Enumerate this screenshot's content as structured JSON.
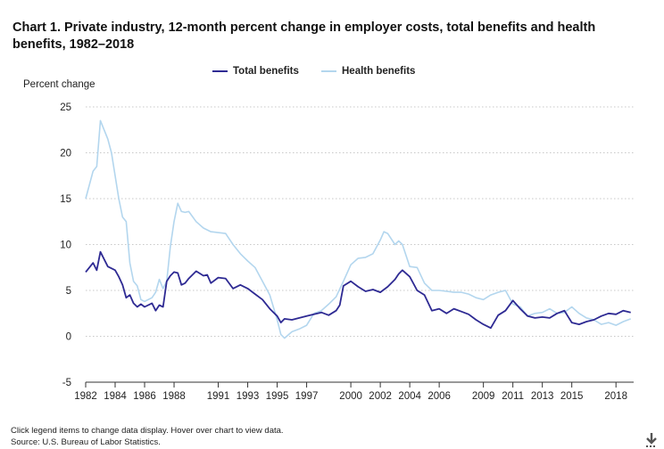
{
  "page": {
    "title": "Chart 1. Private industry, 12-month percent change in employer costs, total benefits and health benefits, 1982–2018",
    "note": "Click legend items to change data display. Hover over chart to view data.",
    "source": "Source: U.S. Bureau of Labor Statistics.",
    "download_icon": "download-arrow-icon"
  },
  "chart_data": {
    "type": "line",
    "title": "Chart 1. Private industry, 12-month percent change in employer costs, total benefits and health benefits, 1982–2018",
    "ylabel": "Percent change",
    "xlabel": "",
    "xlim": [
      1982,
      2019.2
    ],
    "ylim": [
      -5,
      25
    ],
    "yticks": [
      -5,
      0,
      5,
      10,
      15,
      20,
      25
    ],
    "xticks": [
      1982,
      1984,
      1986,
      1988,
      1991,
      1993,
      1995,
      1997,
      2000,
      2002,
      2004,
      2006,
      2009,
      2011,
      2013,
      2015,
      2018
    ],
    "grid": "horizontal dotted",
    "legend": "top-center",
    "series": [
      {
        "name": "Total benefits",
        "color": "#2e2a93",
        "x": [
          1982,
          1982.5,
          1982.75,
          1983,
          1983.5,
          1984,
          1984.25,
          1984.5,
          1984.75,
          1985,
          1985.25,
          1985.5,
          1985.75,
          1986,
          1986.5,
          1986.75,
          1987,
          1987.25,
          1987.5,
          1987.75,
          1988,
          1988.25,
          1988.5,
          1988.75,
          1989,
          1989.5,
          1990,
          1990.25,
          1990.5,
          1991,
          1991.5,
          1992,
          1992.5,
          1993,
          1993.5,
          1994,
          1994.5,
          1995,
          1995.25,
          1995.5,
          1996,
          1996.5,
          1997,
          1997.5,
          1998,
          1998.5,
          1999,
          1999.25,
          1999.5,
          2000,
          2000.5,
          2001,
          2001.5,
          2002,
          2002.5,
          2003,
          2003.25,
          2003.5,
          2004,
          2004.5,
          2005,
          2005.5,
          2006,
          2006.5,
          2007,
          2007.5,
          2008,
          2008.5,
          2009,
          2009.5,
          2010,
          2010.5,
          2011,
          2011.5,
          2012,
          2012.5,
          2013,
          2013.5,
          2014,
          2014.5,
          2015,
          2015.5,
          2016,
          2016.5,
          2017,
          2017.5,
          2018,
          2018.5,
          2019
        ],
        "values": [
          7.0,
          8.0,
          7.2,
          9.2,
          7.6,
          7.2,
          6.5,
          5.6,
          4.2,
          4.5,
          3.6,
          3.2,
          3.5,
          3.2,
          3.6,
          2.8,
          3.4,
          3.2,
          6.0,
          6.6,
          7.0,
          6.9,
          5.6,
          5.8,
          6.3,
          7.1,
          6.6,
          6.7,
          5.8,
          6.4,
          6.3,
          5.2,
          5.6,
          5.2,
          4.6,
          4.0,
          3.0,
          2.2,
          1.5,
          1.9,
          1.8,
          2.0,
          2.2,
          2.4,
          2.6,
          2.3,
          2.8,
          3.4,
          5.5,
          6.0,
          5.4,
          4.9,
          5.1,
          4.8,
          5.4,
          6.2,
          6.8,
          7.2,
          6.5,
          5.0,
          4.5,
          2.8,
          3.0,
          2.5,
          3.0,
          2.7,
          2.4,
          1.8,
          1.3,
          0.9,
          2.3,
          2.8,
          3.9,
          3.0,
          2.2,
          2.0,
          2.1,
          2.0,
          2.5,
          2.8,
          1.5,
          1.3,
          1.6,
          1.8,
          2.2,
          2.5,
          2.4,
          2.8,
          2.6
        ]
      },
      {
        "name": "Health benefits",
        "color": "#b3d6ee",
        "x": [
          1982,
          1982.5,
          1982.75,
          1983,
          1983.5,
          1983.75,
          1984,
          1984.25,
          1984.5,
          1984.75,
          1985,
          1985.25,
          1985.5,
          1985.75,
          1986,
          1986.5,
          1986.75,
          1987,
          1987.25,
          1987.5,
          1987.75,
          1988,
          1988.25,
          1988.5,
          1988.75,
          1989,
          1989.5,
          1990,
          1990.5,
          1991,
          1991.5,
          1992,
          1992.5,
          1993,
          1993.5,
          1994,
          1994.5,
          1995,
          1995.25,
          1995.5,
          1996,
          1996.5,
          1997,
          1997.5,
          1998,
          1998.5,
          1999,
          1999.5,
          2000,
          2000.5,
          2001,
          2001.5,
          2002,
          2002.25,
          2002.5,
          2003,
          2003.25,
          2003.5,
          2004,
          2004.5,
          2005,
          2005.5,
          2006,
          2006.5,
          2007,
          2007.5,
          2008,
          2008.5,
          2009,
          2009.5,
          2010,
          2010.5,
          2011,
          2011.5,
          2012,
          2012.5,
          2013,
          2013.5,
          2014,
          2014.5,
          2015,
          2015.5,
          2016,
          2016.5,
          2017,
          2017.5,
          2018,
          2018.5,
          2019
        ],
        "values": [
          15.0,
          18.0,
          18.5,
          23.5,
          21.5,
          20.0,
          17.5,
          15.0,
          13.0,
          12.5,
          8.0,
          6.0,
          5.5,
          4.0,
          3.8,
          4.2,
          4.8,
          6.2,
          5.2,
          6.0,
          9.8,
          12.5,
          14.5,
          13.6,
          13.5,
          13.6,
          12.5,
          11.8,
          11.4,
          11.3,
          11.2,
          10.0,
          9.0,
          8.2,
          7.5,
          6.0,
          4.5,
          1.8,
          0.2,
          -0.2,
          0.5,
          0.8,
          1.2,
          2.5,
          2.8,
          3.5,
          4.3,
          6.0,
          7.8,
          8.5,
          8.6,
          9.0,
          10.5,
          11.4,
          11.2,
          10.0,
          10.4,
          10.0,
          7.6,
          7.5,
          5.8,
          5.0,
          5.0,
          4.9,
          4.8,
          4.8,
          4.6,
          4.2,
          4.0,
          4.5,
          4.8,
          5.0,
          3.5,
          3.2,
          2.2,
          2.5,
          2.6,
          3.0,
          2.5,
          2.6,
          3.2,
          2.5,
          2.0,
          1.8,
          1.3,
          1.5,
          1.2,
          1.6,
          1.9
        ]
      }
    ]
  }
}
